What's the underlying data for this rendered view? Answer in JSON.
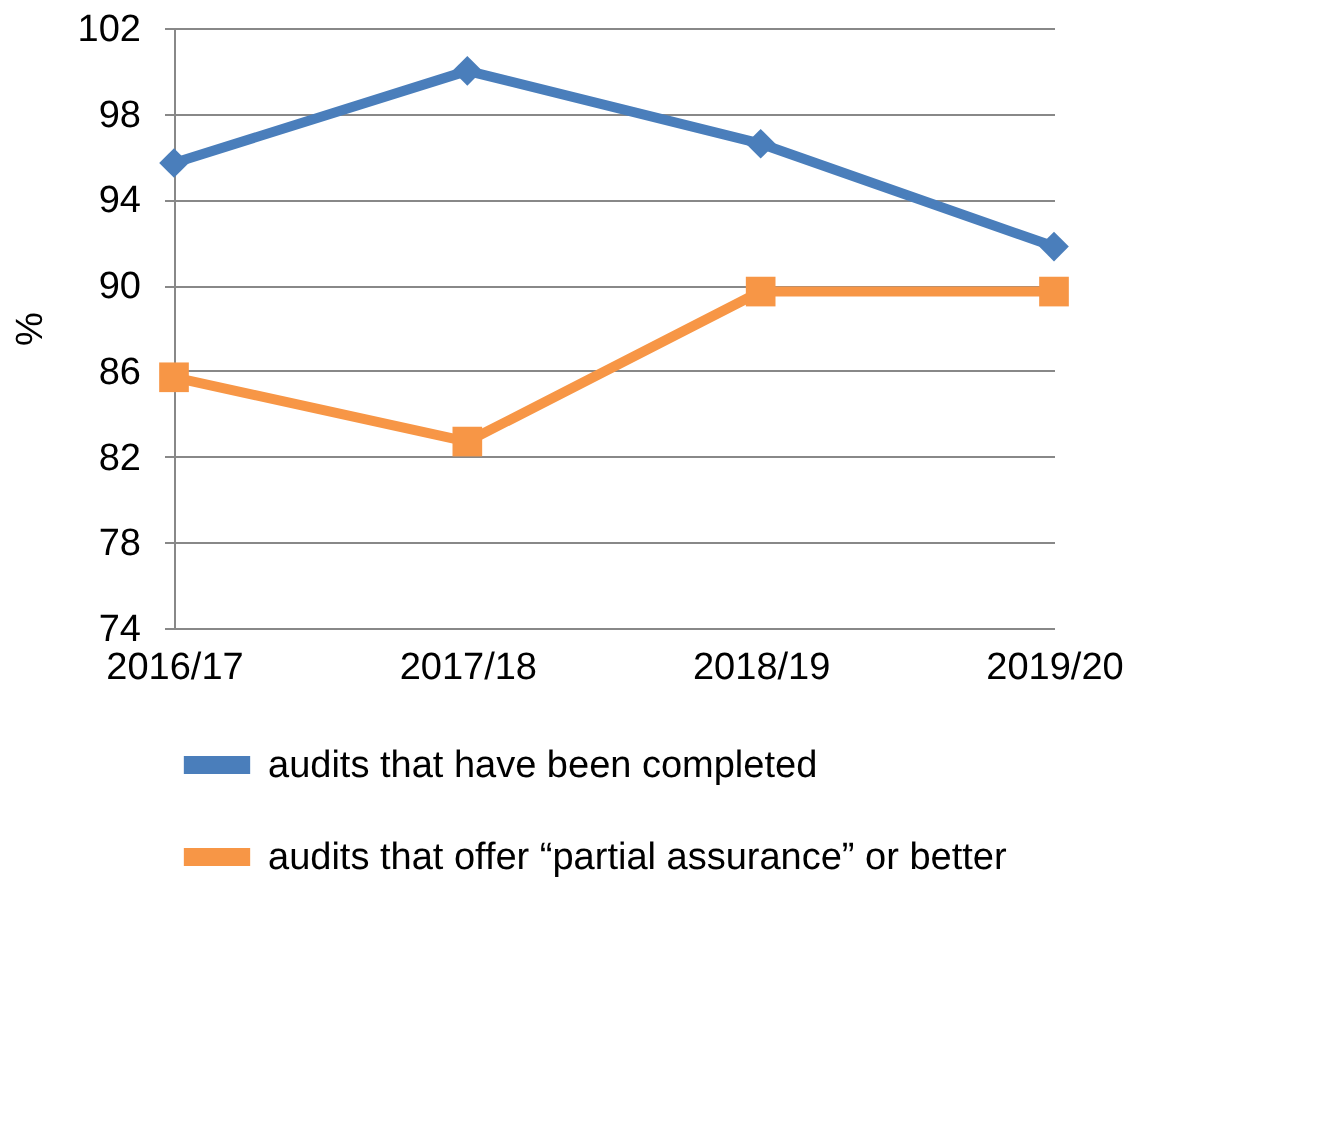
{
  "chart_data": {
    "type": "line",
    "ylabel": "%",
    "categories": [
      "2016/17",
      "2017/18",
      "2018/19",
      "2019/20"
    ],
    "series": [
      {
        "name": "audits that have been completed",
        "color": "#4a7ebb",
        "marker": "diamond",
        "values": [
          95.7,
          100,
          96.6,
          91.8
        ]
      },
      {
        "name": "audits that offer “partial assurance” or better",
        "color": "#f79646",
        "marker": "square",
        "values": [
          85.7,
          82.7,
          89.7,
          89.7
        ]
      }
    ],
    "ylim": [
      74,
      102
    ],
    "yticks": [
      74,
      78,
      82,
      86,
      90,
      94,
      98,
      102
    ],
    "grid": "y",
    "legend": "bottom",
    "line_style": "solid"
  }
}
